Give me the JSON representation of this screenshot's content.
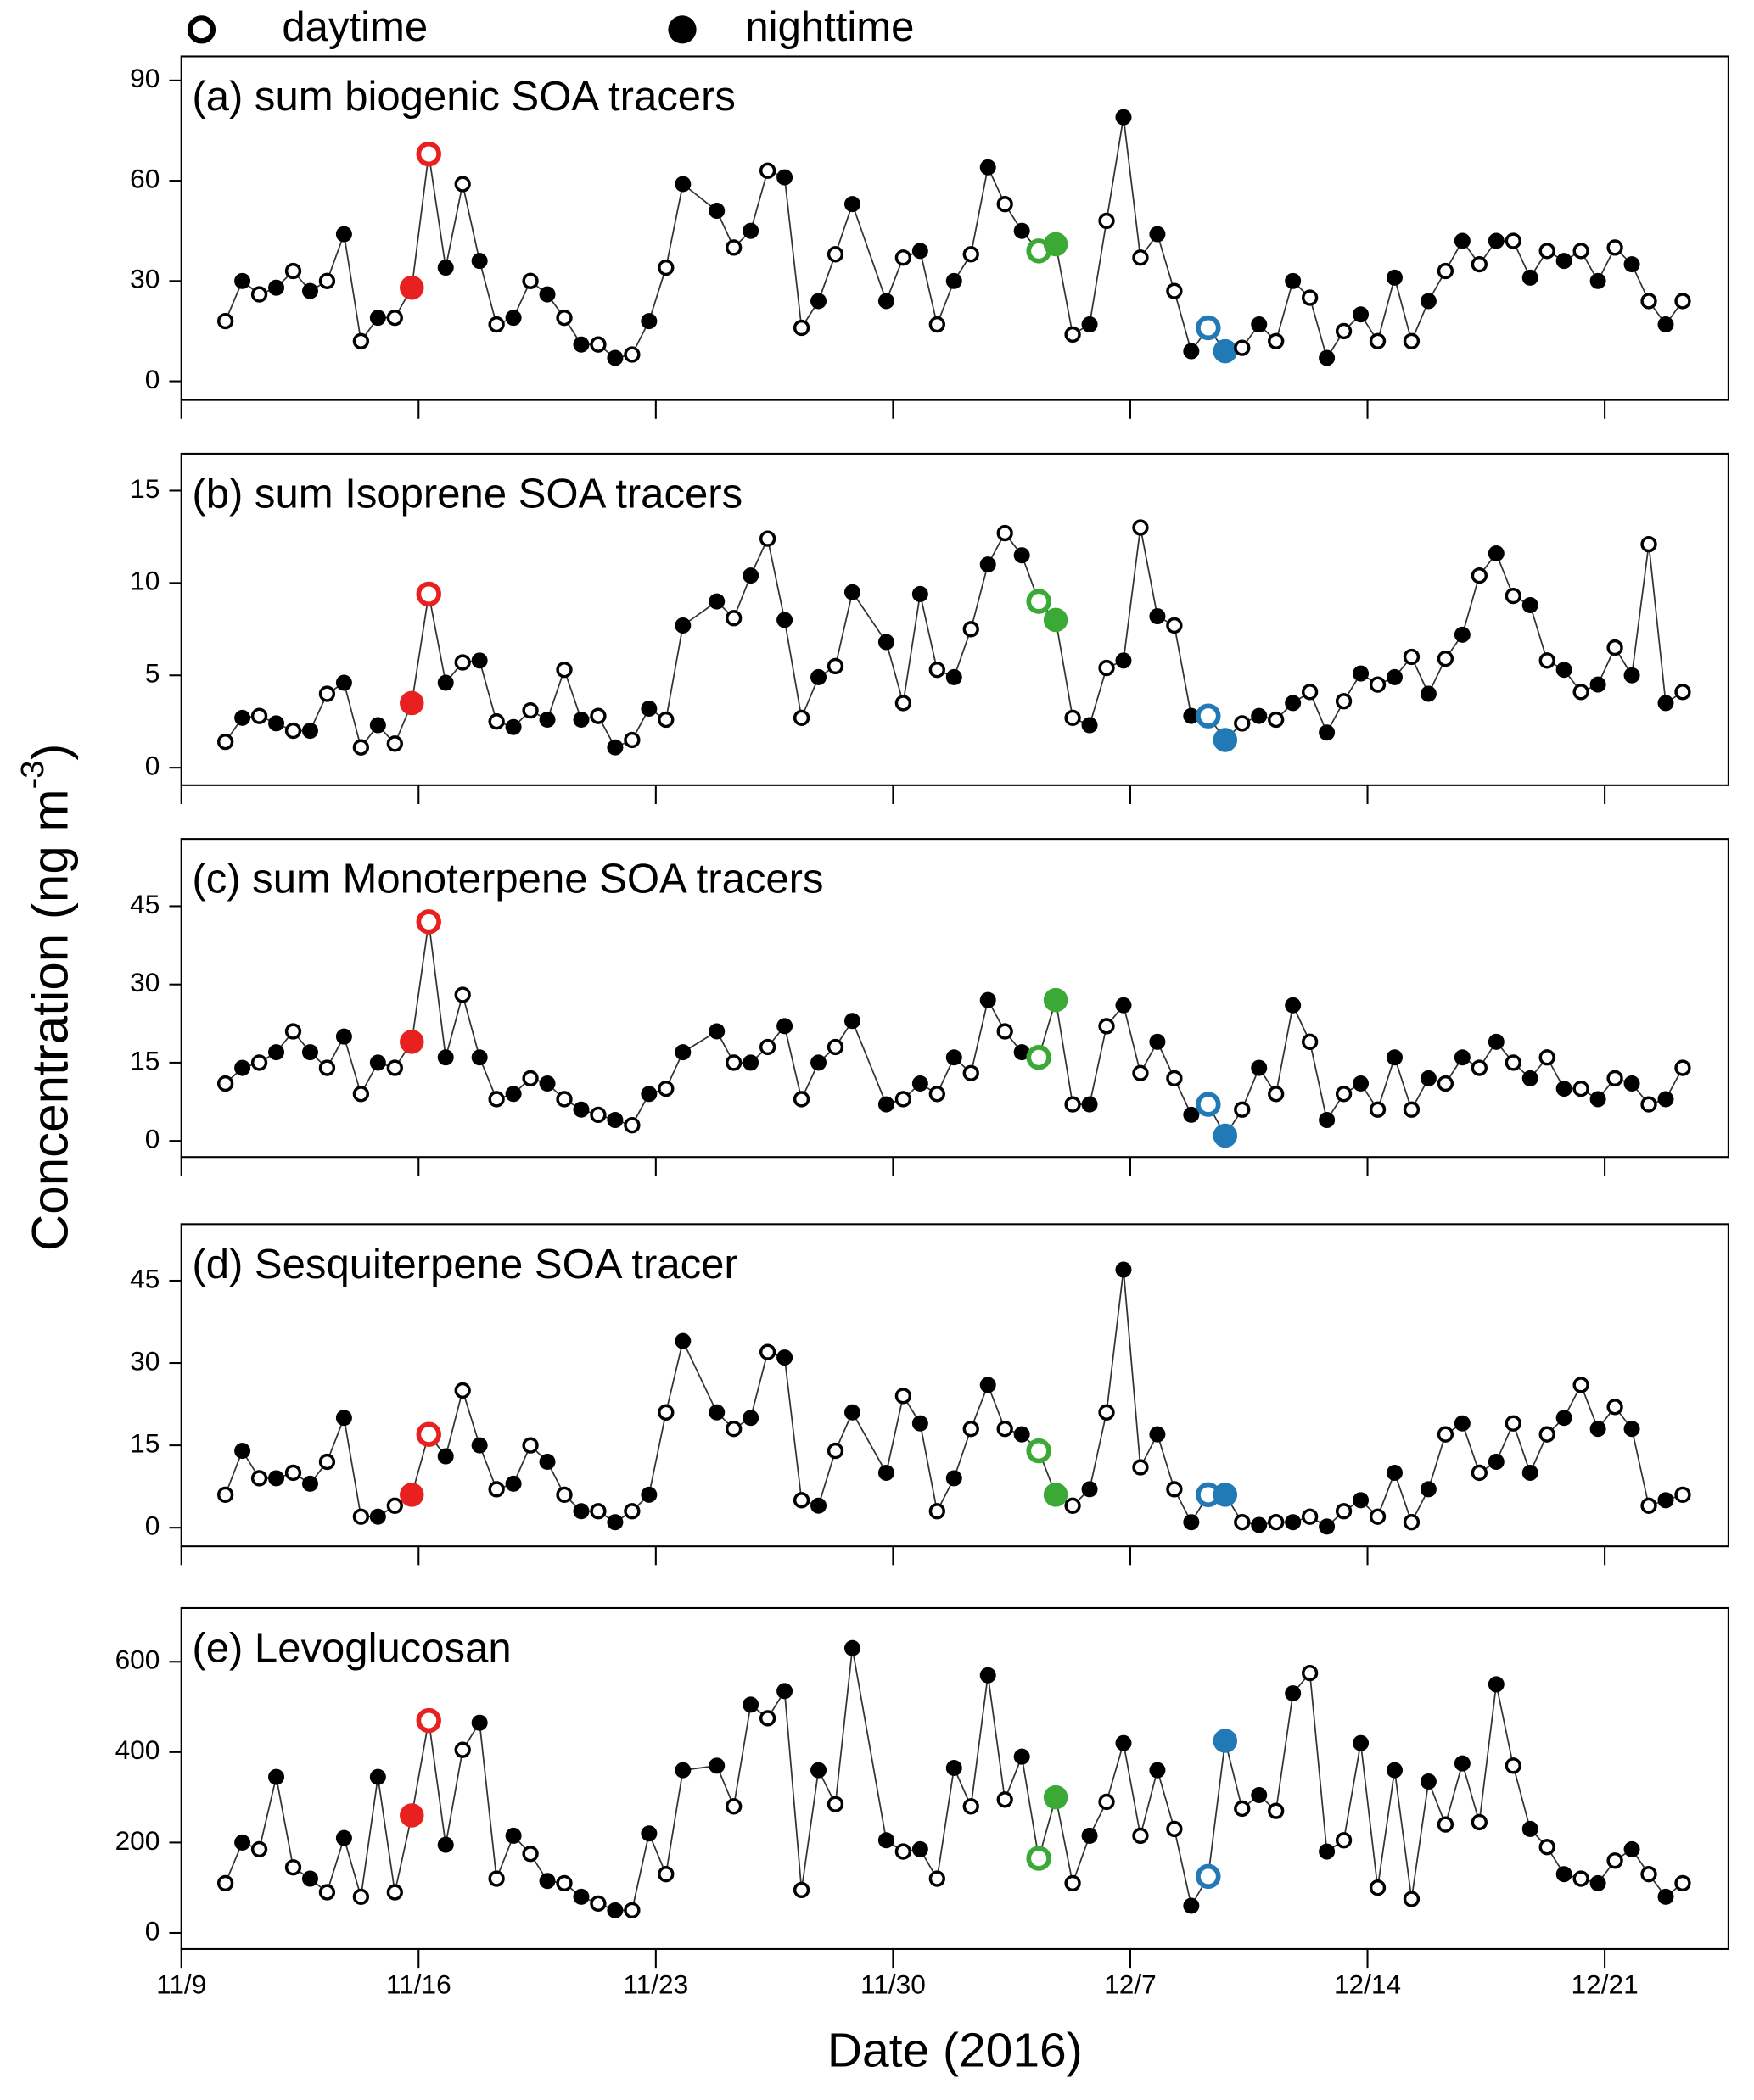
{
  "chart_data": {
    "type": "line",
    "legend": [
      "daytime",
      "nighttime"
    ],
    "ylabel": [
      "Concentration (ng m",
      "-3",
      ")"
    ],
    "xlabel": "Date (2016)",
    "xlim": [
      0,
      45.65
    ],
    "xticks": [
      {
        "value": 0,
        "label": "11/9"
      },
      {
        "value": 7,
        "label": "11/16"
      },
      {
        "value": 14,
        "label": "11/23"
      },
      {
        "value": 21,
        "label": "11/30"
      },
      {
        "value": 28,
        "label": "12/7"
      },
      {
        "value": 35,
        "label": "12/14"
      },
      {
        "value": 42,
        "label": "12/21"
      }
    ],
    "highlights": [
      {
        "color": "#e8201f",
        "x": [
          6.8,
          7.3
        ]
      },
      {
        "color": "#3aa935",
        "x": [
          25.3,
          25.8
        ]
      },
      {
        "color": "#2179b6",
        "x": [
          30.3,
          30.8
        ]
      }
    ],
    "x": [
      1.3,
      1.8,
      2.3,
      2.8,
      3.3,
      3.8,
      4.3,
      4.8,
      5.3,
      5.8,
      6.3,
      6.8,
      7.3,
      7.8,
      8.3,
      8.8,
      9.3,
      9.8,
      10.3,
      10.8,
      11.3,
      11.8,
      12.3,
      12.8,
      13.3,
      13.8,
      14.3,
      14.8,
      15.8,
      16.3,
      16.8,
      17.3,
      17.8,
      18.3,
      18.8,
      19.3,
      19.8,
      20.8,
      21.3,
      21.8,
      22.3,
      22.8,
      23.3,
      23.8,
      24.3,
      24.8,
      25.3,
      25.8,
      26.3,
      26.8,
      27.3,
      27.8,
      28.3,
      28.8,
      29.3,
      29.8,
      30.3,
      30.8,
      31.3,
      31.8,
      32.3,
      32.8,
      33.3,
      33.8,
      34.3,
      34.8,
      35.3,
      35.8,
      36.3,
      36.8,
      37.3,
      37.8,
      38.3,
      38.8,
      39.3,
      39.8,
      40.3,
      40.8,
      41.3,
      41.8,
      42.3,
      42.8,
      43.3,
      43.8,
      44.3
    ],
    "panels": [
      {
        "title": "(a) sum biogenic SOA tracers",
        "ylim": [
          -5.6,
          97.2
        ],
        "yticks": [
          0,
          30,
          60,
          90
        ],
        "values": [
          18,
          30,
          26,
          28,
          33,
          27,
          30,
          44,
          12,
          19,
          19,
          28,
          68,
          34,
          59,
          36,
          17,
          19,
          30,
          26,
          19,
          11,
          11,
          7,
          8,
          18,
          34,
          59,
          51,
          40,
          45,
          63,
          61,
          16,
          24,
          38,
          53,
          24,
          37,
          39,
          17,
          30,
          38,
          64,
          53,
          45,
          39,
          41,
          14,
          17,
          48,
          79,
          37,
          44,
          27,
          9,
          16,
          9,
          10,
          17,
          12,
          30,
          25,
          7,
          15,
          20,
          12,
          31,
          12,
          24,
          33,
          42,
          35,
          42,
          42,
          31,
          39,
          36,
          39,
          30,
          40,
          35,
          24,
          17,
          24
        ]
      },
      {
        "title": "(b) sum Isoprene SOA tracers",
        "ylim": [
          -0.95,
          17.0
        ],
        "yticks": [
          0,
          5,
          10,
          15
        ],
        "values": [
          1.4,
          2.7,
          2.8,
          2.4,
          2,
          2,
          4,
          4.6,
          1.1,
          2.3,
          1.3,
          3.5,
          9.4,
          4.6,
          5.7,
          5.8,
          2.5,
          2.2,
          3.1,
          2.6,
          5.3,
          2.6,
          2.8,
          1.1,
          1.5,
          3.2,
          2.6,
          7.7,
          9,
          8.1,
          10.4,
          12.4,
          8,
          2.7,
          4.9,
          5.5,
          9.5,
          6.8,
          3.5,
          9.4,
          5.3,
          4.9,
          7.5,
          11,
          12.7,
          11.5,
          9,
          8,
          2.7,
          2.3,
          5.4,
          5.8,
          13,
          8.2,
          7.7,
          2.8,
          2.8,
          1.5,
          2.4,
          2.8,
          2.6,
          3.5,
          4.1,
          1.9,
          3.6,
          5.1,
          4.5,
          4.9,
          6,
          4,
          5.9,
          7.2,
          10.4,
          11.6,
          9.3,
          8.8,
          5.8,
          5.3,
          4.1,
          4.5,
          6.5,
          5,
          12.1,
          3.5,
          4.1
        ]
      },
      {
        "title": "(c) sum Monoterpene SOA tracers",
        "ylim": [
          -3.1,
          57.9
        ],
        "yticks": [
          0,
          15,
          30,
          45
        ],
        "values": [
          11,
          14,
          15,
          17,
          21,
          17,
          14,
          20,
          9,
          15,
          14,
          19,
          42,
          16,
          28,
          16,
          8,
          9,
          12,
          11,
          8,
          6,
          5,
          4,
          3,
          9,
          10,
          17,
          21,
          15,
          15,
          18,
          22,
          8,
          15,
          18,
          23,
          7,
          8,
          11,
          9,
          16,
          13,
          27,
          21,
          17,
          16,
          27,
          7,
          7,
          22,
          26,
          13,
          19,
          12,
          5,
          7,
          1,
          6,
          14,
          9,
          26,
          19,
          4,
          9,
          11,
          6,
          16,
          6,
          12,
          11,
          16,
          14,
          19,
          15,
          12,
          16,
          10,
          10,
          8,
          12,
          11,
          7,
          8,
          14
        ]
      },
      {
        "title": "(d) Sesquiterpene SOA tracer",
        "ylim": [
          -3.4,
          55.3
        ],
        "yticks": [
          0,
          15,
          30,
          45
        ],
        "values": [
          6,
          14,
          9,
          9,
          10,
          8,
          12,
          20,
          2,
          2,
          4,
          6,
          17,
          13,
          25,
          15,
          7,
          8,
          15,
          12,
          6,
          3,
          3,
          1,
          3,
          6,
          21,
          34,
          21,
          18,
          20,
          32,
          31,
          5,
          4,
          14,
          21,
          10,
          24,
          19,
          3,
          9,
          18,
          26,
          18,
          17,
          14,
          6,
          4,
          7,
          21,
          47,
          11,
          17,
          7,
          1,
          6,
          6,
          1,
          0.5,
          1,
          1,
          2,
          0.2,
          3,
          5,
          2,
          10,
          1,
          7,
          17,
          19,
          10,
          12,
          19,
          10,
          17,
          20,
          26,
          18,
          22,
          18,
          4,
          5,
          6
        ]
      },
      {
        "title": "(e) Levoglucosan",
        "ylim": [
          -35.6,
          718.8
        ],
        "yticks": [
          0,
          200,
          400,
          600
        ],
        "values": [
          110,
          200,
          185,
          345,
          145,
          120,
          90,
          210,
          80,
          345,
          90,
          260,
          470,
          195,
          405,
          465,
          120,
          215,
          175,
          115,
          110,
          80,
          65,
          50,
          50,
          220,
          130,
          360,
          370,
          280,
          505,
          475,
          535,
          95,
          360,
          285,
          630,
          205,
          180,
          185,
          120,
          365,
          280,
          570,
          295,
          390,
          165,
          300,
          110,
          215,
          290,
          420,
          215,
          360,
          230,
          60,
          125,
          425,
          275,
          305,
          270,
          530,
          575,
          180,
          205,
          420,
          100,
          360,
          75,
          335,
          240,
          375,
          245,
          550,
          370,
          230,
          190,
          130,
          120,
          110,
          160,
          185,
          130,
          80,
          110
        ]
      }
    ]
  }
}
